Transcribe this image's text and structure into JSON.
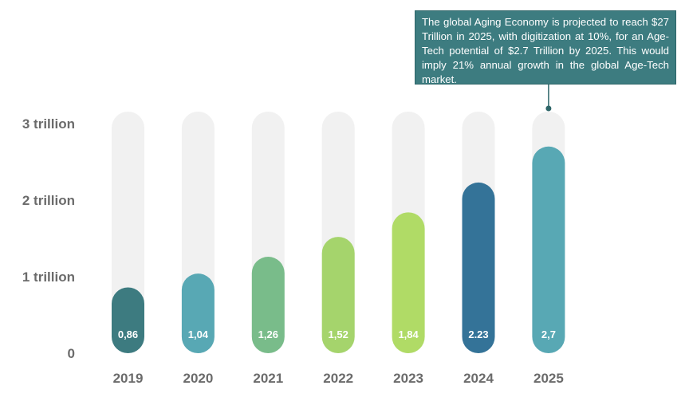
{
  "chart_data": {
    "type": "bar",
    "categories": [
      "2019",
      "2020",
      "2021",
      "2022",
      "2023",
      "2024",
      "2025"
    ],
    "values": [
      0.86,
      1.04,
      1.26,
      1.52,
      1.84,
      2.23,
      2.7
    ],
    "value_labels": [
      "0,86",
      "1,04",
      "1,26",
      "1,52",
      "1,84",
      "2.23",
      "2,7"
    ],
    "bar_colors": [
      "#3d7b80",
      "#58a8b4",
      "#79bc8a",
      "#a5d46c",
      "#b0db66",
      "#347398",
      "#58a8b4"
    ],
    "track_color": "#f1f1f1",
    "ylim": [
      0,
      3
    ],
    "y_ticks": [
      {
        "value": 0,
        "label": "0"
      },
      {
        "value": 1,
        "label": "1 trillion"
      },
      {
        "value": 2,
        "label": "2 trillion"
      },
      {
        "value": 3,
        "label": "3 trillion"
      }
    ],
    "annotation": {
      "target_category": "2025",
      "text": "The global Aging Economy is projected to reach $27 Trillion in 2025, with digitization at 10%, for an Age-Tech potential of $2.7 Trillion by 2025. This would imply 21% annual growth in the global Age-Tech market.",
      "background": "#3d7c80"
    },
    "title": "",
    "xlabel": "",
    "ylabel": ""
  }
}
